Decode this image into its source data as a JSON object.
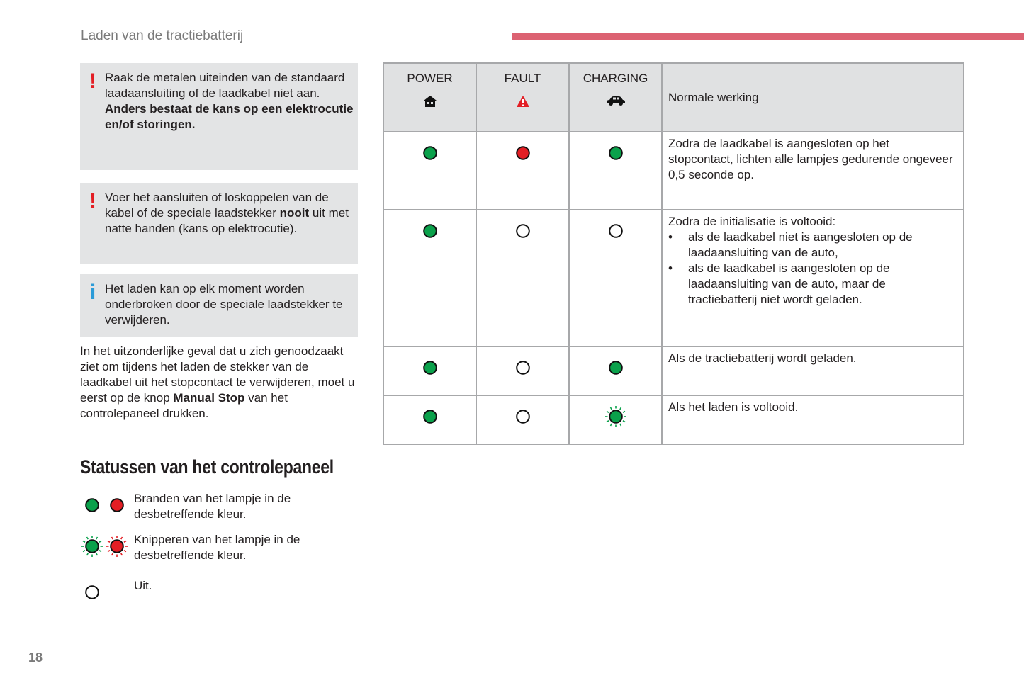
{
  "header": {
    "title": "Laden van de tractiebatterij",
    "accent": "#dc6272"
  },
  "notes": [
    {
      "icon": "warning-icon",
      "glyph": "!",
      "lines": [
        "Raak de metalen uiteinden van de standaard laadaansluiting of de laadkabel niet aan. "
      ],
      "bold": "Anders bestaat de kans op een elektrocutie en/of storingen.",
      "after": ""
    },
    {
      "icon": "warning-icon",
      "glyph": "!",
      "lines": [
        "Voer het aansluiten of loskoppelen van de kabel of de speciale laadstekker "
      ],
      "bold": "nooit",
      "after": " uit met natte handen (kans op elektrocutie)."
    },
    {
      "icon": "info-icon",
      "glyph": "i",
      "lines": [
        "Het laden kan op elk moment worden onderbroken door de speciale laadstekker te verwijderen."
      ],
      "bold": "",
      "after": ""
    }
  ],
  "paragraph": {
    "text": "In het uitzonderlijke geval dat u zich genoodzaakt ziet om tijdens het laden de stekker van de laadkabel uit het stopcontact te verwijderen, moet u eerst op de knop ",
    "bold": "Manual Stop",
    "after": " van het controlepaneel drukken."
  },
  "section_title": "Statussen van het controlepaneel",
  "legend": [
    {
      "lamps": [
        "on-green",
        "on-red"
      ],
      "text": "Branden van het lampje in de desbetreffende kleur."
    },
    {
      "lamps": [
        "blink-green",
        "blink-red"
      ],
      "text": "Knipperen van het lampje in de desbetreffende kleur."
    },
    {
      "lamps": [
        "off"
      ],
      "text": "Uit."
    }
  ],
  "table": {
    "headers": [
      {
        "label": "POWER",
        "icon": "house-icon"
      },
      {
        "label": "FAULT",
        "icon": "warning-triangle-icon"
      },
      {
        "label": "CHARGING",
        "icon": "car-icon"
      }
    ],
    "header_desc": "Normale werking",
    "rows": [
      {
        "lamps": [
          "on-green",
          "on-red",
          "on-green"
        ],
        "text": "Zodra de laadkabel is aangesloten op het stopcontact, lichten alle lampjes gedurende ongeveer 0,5 seconde op.",
        "bullets": []
      },
      {
        "lamps": [
          "on-green",
          "off",
          "off"
        ],
        "text": "Zodra de initialisatie is voltooid:",
        "bullets": [
          "als de laadkabel niet is aangesloten op de laadaansluiting van de auto,",
          "als de laadkabel is aangesloten op de laadaansluiting van de auto, maar de tractiebatterij niet wordt geladen."
        ]
      },
      {
        "lamps": [
          "on-green",
          "off",
          "on-green"
        ],
        "text": "Als de tractiebatterij wordt geladen.",
        "bullets": []
      },
      {
        "lamps": [
          "on-green",
          "off",
          "blink-green"
        ],
        "text": "Als het laden is voltooid.",
        "bullets": []
      }
    ],
    "row_heights_note": ""
  },
  "colors": {
    "green": "#0aa14b",
    "red": "#e31e24"
  },
  "page_number": "18"
}
